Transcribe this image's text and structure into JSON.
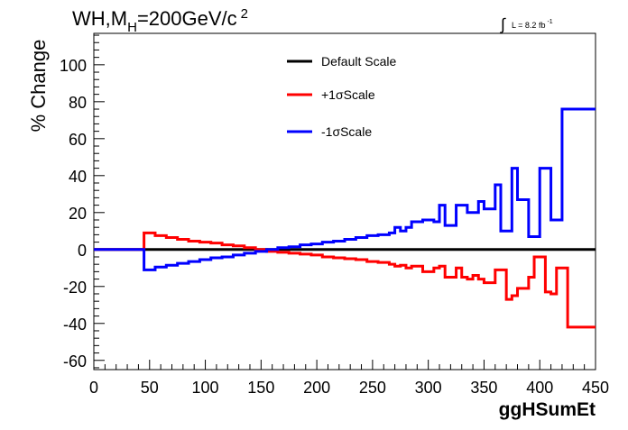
{
  "chart_data": {
    "type": "line",
    "title_parts": {
      "base": "WH,M",
      "subscript": "H",
      "rest": "=200GeV/c",
      "superscript": "2"
    },
    "lumi_label": {
      "integral": "∫",
      "text": "L = 8.2 fb",
      "superscript": "-1"
    },
    "xlabel": "ggHSumEt",
    "ylabel": "% Change",
    "xlim": [
      0,
      450
    ],
    "ylim": [
      -65,
      117
    ],
    "x_ticks": [
      0,
      50,
      100,
      150,
      200,
      250,
      300,
      350,
      400,
      450
    ],
    "y_ticks": [
      -60,
      -40,
      -20,
      0,
      20,
      40,
      60,
      80,
      100
    ],
    "bin_edges": [
      0,
      45,
      55,
      65,
      75,
      85,
      95,
      105,
      115,
      125,
      135,
      145,
      155,
      165,
      175,
      185,
      195,
      205,
      215,
      225,
      235,
      245,
      255,
      265,
      270,
      275,
      280,
      285,
      295,
      305,
      310,
      315,
      320,
      325,
      330,
      335,
      340,
      345,
      350,
      355,
      360,
      365,
      370,
      375,
      380,
      385,
      390,
      395,
      400,
      405,
      410,
      415,
      420,
      425,
      430,
      450
    ],
    "series": [
      {
        "name": "Default Scale",
        "color": "#000000",
        "values": [
          0,
          0,
          0,
          0,
          0,
          0,
          0,
          0,
          0,
          0,
          0,
          0,
          0,
          0,
          0,
          0,
          0,
          0,
          0,
          0,
          0,
          0,
          0,
          0,
          0,
          0,
          0,
          0,
          0,
          0,
          0,
          0,
          0,
          0,
          0,
          0,
          0,
          0,
          0,
          0,
          0,
          0,
          0,
          0,
          0,
          0,
          0,
          0,
          0,
          0,
          0,
          0,
          0,
          0,
          0
        ]
      },
      {
        "name": "+1σScale",
        "color": "#ff0000",
        "values": [
          0,
          9,
          7.5,
          6.5,
          5.5,
          4.5,
          4,
          3.5,
          2.5,
          2,
          1,
          0,
          -1,
          -1.5,
          -2,
          -2.5,
          -3,
          -4,
          -4.5,
          -5,
          -5.5,
          -6.5,
          -7,
          -8,
          -9,
          -8.5,
          -10,
          -9,
          -12,
          -10,
          -9,
          -15,
          -15,
          -10,
          -15,
          -16,
          -14,
          -16,
          -18,
          -18,
          -11,
          -11,
          -27,
          -25,
          -21,
          -21,
          -15,
          -4,
          -4,
          -23,
          -24,
          -10,
          -10,
          -42,
          -42
        ]
      },
      {
        "name": "-1σScale",
        "color": "#0000ff",
        "values": [
          0,
          -11,
          -9.5,
          -8.5,
          -7.5,
          -6.5,
          -5.5,
          -4.5,
          -4,
          -3,
          -2,
          -1,
          0,
          1,
          1.5,
          2.5,
          3,
          4,
          4.5,
          5.5,
          6.5,
          7.5,
          8,
          9,
          12,
          10,
          12,
          15,
          16,
          15,
          24,
          13,
          13,
          24,
          24,
          20,
          20,
          26,
          22,
          22,
          35,
          10,
          10,
          44,
          27,
          27,
          7,
          7,
          44,
          44,
          16,
          16,
          76,
          76,
          76
        ]
      }
    ],
    "legend": {
      "placement": "top-center",
      "entries": [
        "Default Scale",
        "+1σScale",
        "-1σScale"
      ]
    },
    "grid": false
  }
}
